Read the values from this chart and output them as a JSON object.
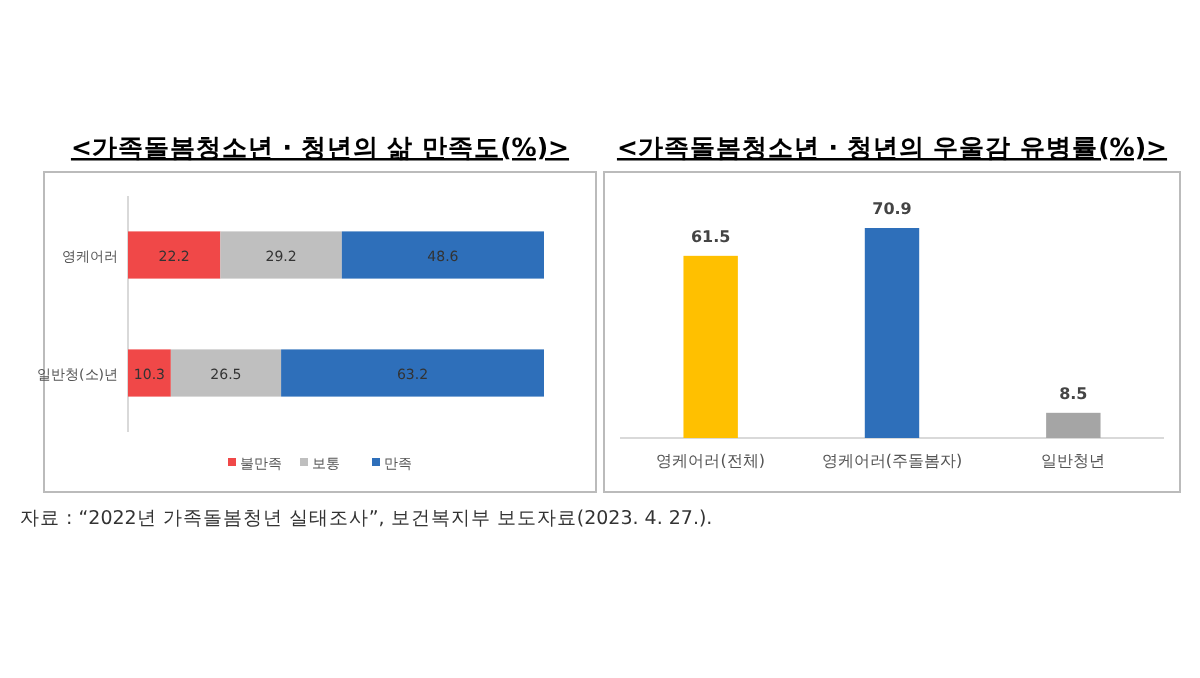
{
  "chart_data": [
    {
      "type": "bar",
      "title": "<가족돌봄청소년 · 청년의 삶 만족도(%)>",
      "orientation": "horizontal",
      "stacked": true,
      "data_labels": true,
      "legend": "bottom",
      "categories": [
        "영케어러",
        "일반청(소)년"
      ],
      "series": [
        {
          "name": "불만족",
          "color": "#f04848",
          "values": [
            22.2,
            10.3
          ]
        },
        {
          "name": "보통",
          "color": "#bfbfbf",
          "values": [
            29.2,
            26.5
          ]
        },
        {
          "name": "만족",
          "color": "#2e6fba",
          "values": [
            48.6,
            63.2
          ]
        }
      ],
      "annotations": [
        "자료 : “2022년 가족돌봄청년 실태조사”, 보건복지부 보도자료(2023. 4. 27.)."
      ]
    },
    {
      "type": "bar",
      "title": "<가족돌봄청소년 · 청년의 우울감 유병률(%)>",
      "data_labels": true,
      "categories": [
        "영케어러(전체)",
        "영케어러(주돌봄자)",
        "일반청년"
      ],
      "values": [
        61.5,
        70.9,
        8.5
      ],
      "colors": [
        "#ffc000",
        "#2e6fba",
        "#a5a5a5"
      ]
    }
  ]
}
